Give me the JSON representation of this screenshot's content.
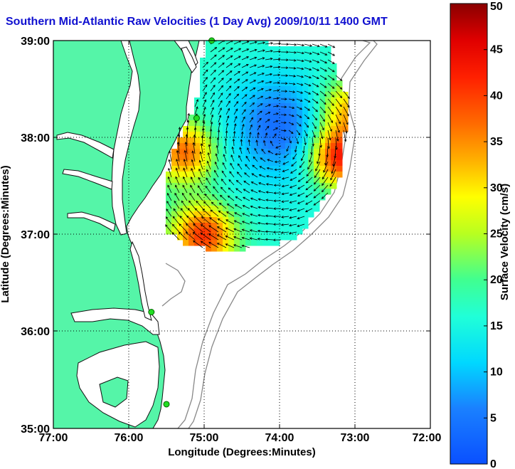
{
  "title": "Southern Mid-Atlantic Raw Velocities (1 Day Avg) 2009/10/11 1400 GMT",
  "xlabel": "Longitude (Degrees:Minutes)",
  "ylabel": "Latitude (Degrees:Minutes)",
  "colorbar_label": "Surface Velocity (cm/s)",
  "x_ticks": [
    "77:00",
    "76:00",
    "75:00",
    "74:00",
    "73:00",
    "72:00"
  ],
  "y_ticks": [
    "39:00",
    "38:00",
    "37:00",
    "36:00",
    "35:00"
  ],
  "colorbar_ticks": [
    "0",
    "5",
    "10",
    "15",
    "20",
    "25",
    "30",
    "35",
    "40",
    "45",
    "50"
  ],
  "colors": {
    "land": "#55f5a8",
    "ocean": "#ffffff",
    "title": "#1010d0",
    "station": "#22dd22"
  },
  "chart_data": {
    "type": "heatmap",
    "title": "Southern Mid-Atlantic Raw Velocities (1 Day Avg) 2009/10/11 1400 GMT",
    "xlabel": "Longitude (Degrees:Minutes)",
    "ylabel": "Latitude (Degrees:Minutes)",
    "xlim": [
      -77,
      -72
    ],
    "ylim": [
      35,
      39
    ],
    "colorbar": {
      "label": "Surface Velocity (cm/s)",
      "range": [
        0,
        50
      ]
    },
    "grid": true,
    "stations": [
      {
        "lon": -74.9,
        "lat": 39.0
      },
      {
        "lon": -75.1,
        "lat": 38.2
      },
      {
        "lon": -75.7,
        "lat": 36.2
      },
      {
        "lon": -75.5,
        "lat": 35.25
      }
    ],
    "velocity_field": {
      "center_lon": -74.0,
      "center_lat": 37.95,
      "max_speed": 50,
      "hot_spots": [
        {
          "lon": -75.0,
          "lat": 37.0,
          "speed": 38
        },
        {
          "lon": -75.25,
          "lat": 37.85,
          "speed": 35
        },
        {
          "lon": -73.2,
          "lat": 37.8,
          "speed": 42
        },
        {
          "lon": -73.1,
          "lat": 38.3,
          "speed": 30
        }
      ],
      "calm_spot": {
        "lon": -74.0,
        "lat": 38.15,
        "speed": 5
      }
    }
  }
}
